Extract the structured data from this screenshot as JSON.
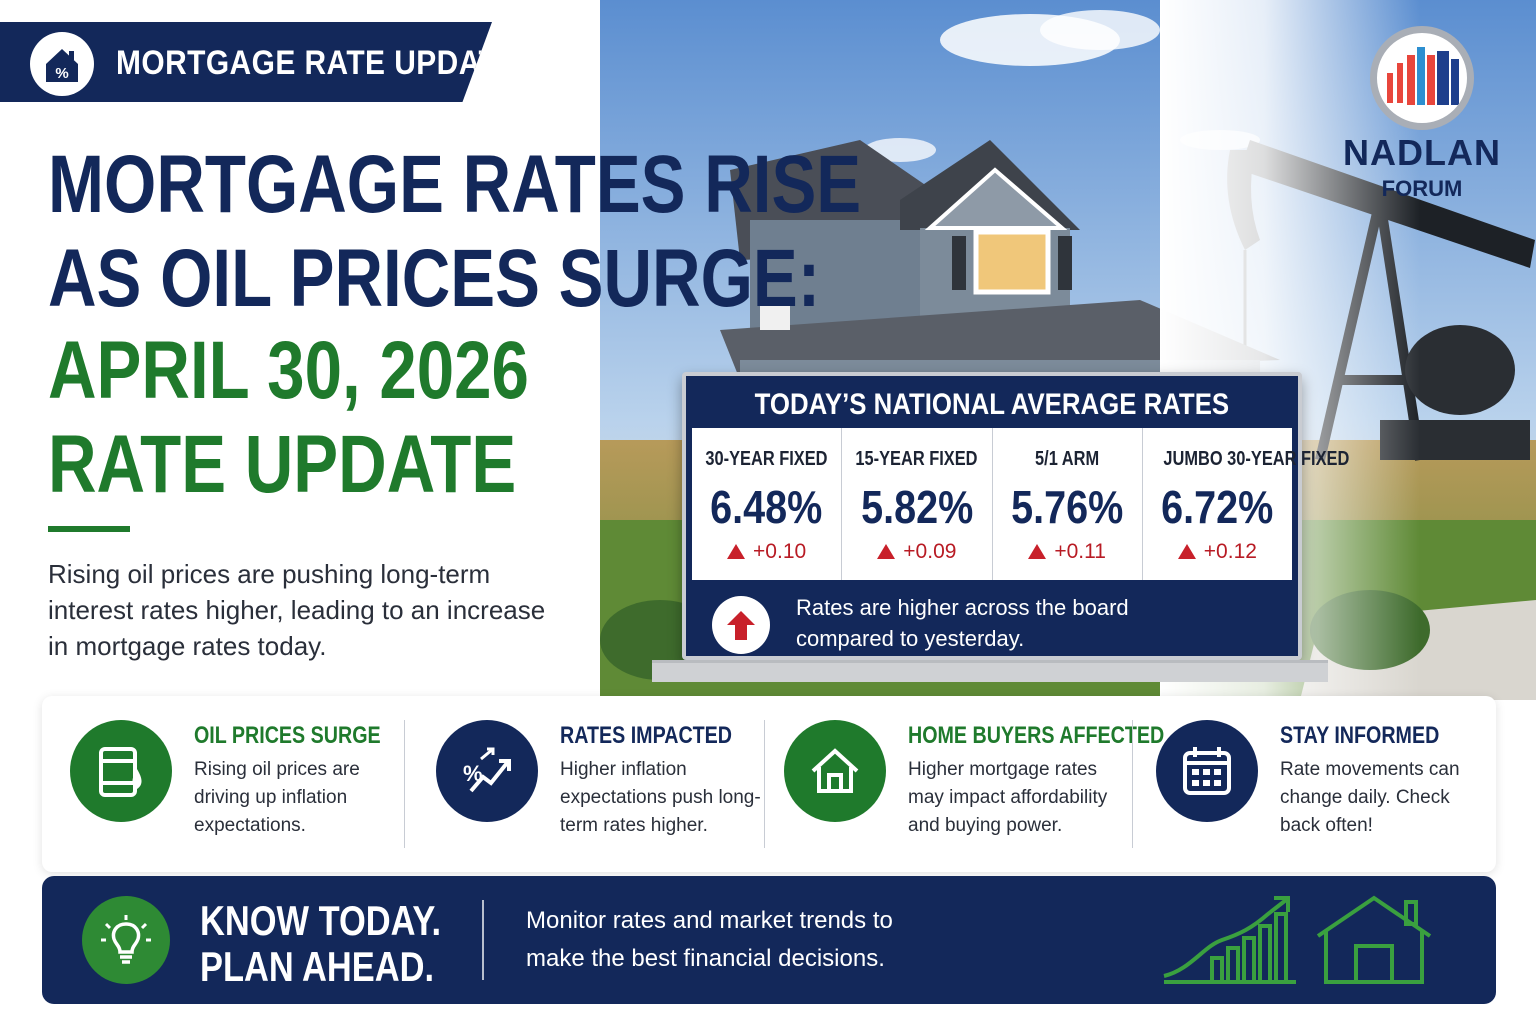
{
  "banner": {
    "label": "MORTGAGE RATE UPDATE",
    "icon": "house-percent-icon"
  },
  "headline": {
    "line1": "MORTGAGE RATES RISE",
    "line2": "AS OIL PRICES SURGE:",
    "line3": "APRIL 30, 2026",
    "line4": "RATE UPDATE"
  },
  "intro": "Rising oil prices are pushing long-term interest rates higher, leading to an increase in mortgage rates today.",
  "logo": {
    "name": "NADLAN",
    "sub": "FORUM"
  },
  "board": {
    "title": "TODAY’S NATIONAL AVERAGE RATES",
    "rates": [
      {
        "label": "30-YEAR FIXED",
        "value": "6.48%",
        "change": "+0.10"
      },
      {
        "label": "15-YEAR FIXED",
        "value": "5.82%",
        "change": "+0.09"
      },
      {
        "label": "5/1 ARM",
        "value": "5.76%",
        "change": "+0.11"
      },
      {
        "label": "JUMBO 30-YEAR FIXED",
        "value": "6.72%",
        "change": "+0.12"
      }
    ],
    "note": "Rates are higher across the board compared to yesterday."
  },
  "features": [
    {
      "title": "OIL PRICES SURGE",
      "text": "Rising oil prices are driving up inflation expectations.",
      "icon": "oil-barrel-icon"
    },
    {
      "title": "RATES IMPACTED",
      "text": "Higher inflation expectations push long-term rates higher.",
      "icon": "percent-trend-icon"
    },
    {
      "title": "HOME BUYERS AFFECTED",
      "text": "Higher mortgage rates may impact affordability and buying power.",
      "icon": "house-icon"
    },
    {
      "title": "STAY INFORMED",
      "text": "Rate movements can change daily. Check back often!",
      "icon": "calendar-icon"
    }
  ],
  "cta": {
    "title_line1": "KNOW TODAY.",
    "title_line2": "PLAN AHEAD.",
    "text": "Monitor rates and market trends to make the best financial decisions."
  },
  "colors": {
    "navy": "#13285a",
    "green": "#1f7a2c",
    "red": "#c8202a"
  }
}
